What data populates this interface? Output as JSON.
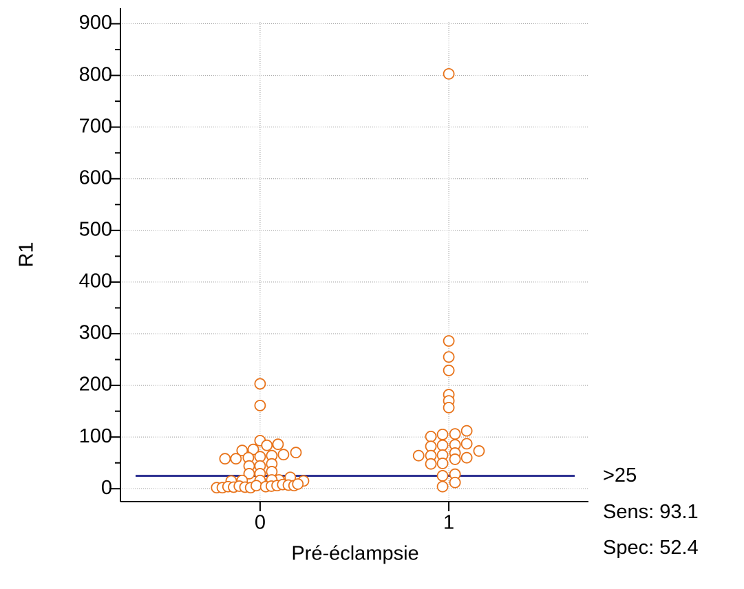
{
  "chart_data": {
    "type": "scatter",
    "x_label": "Pré-éclampsie",
    "y_label": "R1",
    "color": "#e8731a",
    "x": [
      0,
      0,
      0,
      -0.036,
      -0.095,
      -0.128,
      -0.186,
      -0.062,
      0,
      0.062,
      0.095,
      0.036,
      0.124,
      0.19,
      -0.058,
      0,
      0.062,
      -0.058,
      0,
      0.062,
      0.1,
      0.16,
      0.23,
      -0.095,
      -0.153,
      0,
      0.062,
      -0.23,
      -0.2,
      -0.17,
      -0.14,
      -0.11,
      -0.08,
      -0.05,
      -0.02,
      0.03,
      0.06,
      0.09,
      0.12,
      0.15,
      0.18,
      0.2,
      1,
      1,
      1,
      1,
      1,
      1,
      1,
      1.095,
      1.033,
      0.967,
      0.905,
      1.033,
      0.967,
      0.905,
      1.095,
      1.16,
      0.84,
      0.905,
      0.967,
      1.033,
      1.095,
      1.033,
      0.967,
      0.905,
      1.033,
      0.967,
      1.033,
      0.967
    ],
    "values": [
      203,
      161,
      93,
      76,
      74,
      58,
      58,
      60,
      62,
      64,
      86,
      84,
      66,
      70,
      44,
      44,
      48,
      29,
      29,
      33,
      17,
      22,
      15,
      16,
      15,
      16,
      17,
      2,
      2,
      4,
      3,
      5,
      3,
      2,
      6,
      4,
      5,
      6,
      8,
      7,
      6,
      9,
      803,
      286,
      255,
      229,
      182,
      170,
      157,
      112,
      106,
      105,
      101,
      85,
      84,
      82,
      87,
      73,
      64,
      64,
      65,
      69,
      60,
      57,
      49,
      48,
      28,
      25,
      12,
      4
    ],
    "xlim": [
      -0.74,
      1.74
    ],
    "xticks": [
      0,
      1
    ],
    "ylim": [
      -25,
      930
    ],
    "yticks": [
      0,
      100,
      200,
      300,
      400,
      500,
      600,
      700,
      800,
      900
    ],
    "yminor_ticks": [
      50,
      150,
      250,
      350,
      450,
      550,
      650,
      750,
      850
    ],
    "grid": true,
    "cutoff": {
      "value": 25,
      "label": ">25",
      "color": "#2e3192"
    },
    "annotations": [
      "Sens: 93.1",
      "Spec: 52.4"
    ]
  }
}
